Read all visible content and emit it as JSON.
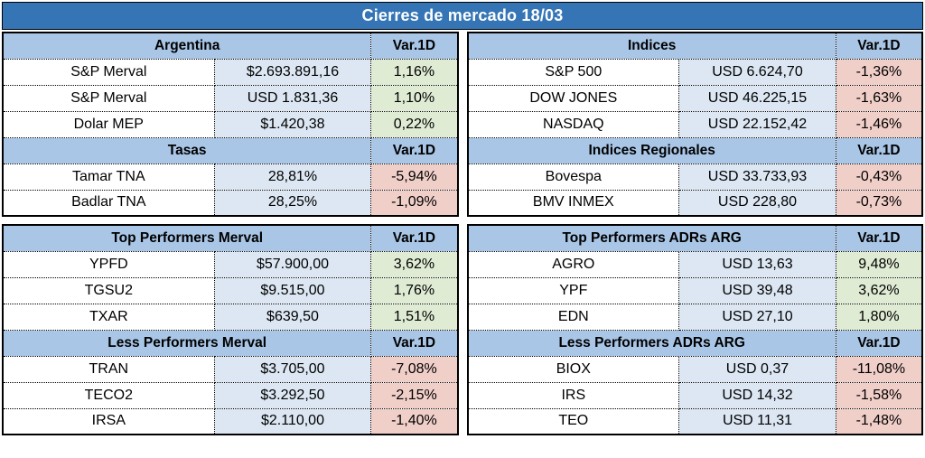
{
  "title": "Cierres de mercado 18/03",
  "colors": {
    "title_bg": "#3575B5",
    "title_text": "#FFFFFF",
    "header_bg": "#A9C6E6",
    "value_bg": "#DCE7F3",
    "positive_bg": "#DFEBD3",
    "negative_bg": "#F1CFC9",
    "border": "#000000"
  },
  "chart_data": {
    "type": "table",
    "title": "Cierres de mercado 18/03",
    "var_column": "Var.1D",
    "tables": [
      {
        "id": "argentina-tasas",
        "sections": [
          {
            "header": "Argentina",
            "rows": [
              {
                "name": "S&P Merval",
                "value": "$2.693.891,16",
                "var1d": "1,16%",
                "direction": "up"
              },
              {
                "name": "S&P Merval",
                "value": "USD 1.831,36",
                "var1d": "1,10%",
                "direction": "up"
              },
              {
                "name": "Dolar MEP",
                "value": "$1.420,38",
                "var1d": "0,22%",
                "direction": "up"
              }
            ]
          },
          {
            "header": "Tasas",
            "rows": [
              {
                "name": "Tamar TNA",
                "value": "28,81%",
                "var1d": "-5,94%",
                "direction": "down"
              },
              {
                "name": "Badlar TNA",
                "value": "28,25%",
                "var1d": "-1,09%",
                "direction": "down"
              }
            ]
          }
        ]
      },
      {
        "id": "indices",
        "sections": [
          {
            "header": "Indices",
            "rows": [
              {
                "name": "S&P 500",
                "value": "USD 6.624,70",
                "var1d": "-1,36%",
                "direction": "down"
              },
              {
                "name": "DOW JONES",
                "value": "USD 46.225,15",
                "var1d": "-1,63%",
                "direction": "down"
              },
              {
                "name": "NASDAQ",
                "value": "USD 22.152,42",
                "var1d": "-1,46%",
                "direction": "down"
              }
            ]
          },
          {
            "header": "Indices Regionales",
            "rows": [
              {
                "name": "Bovespa",
                "value": "USD 33.733,93",
                "var1d": "-0,43%",
                "direction": "down"
              },
              {
                "name": "BMV INMEX",
                "value": "USD 228,80",
                "var1d": "-0,73%",
                "direction": "down"
              }
            ]
          }
        ]
      },
      {
        "id": "merval-performers",
        "sections": [
          {
            "header": "Top Performers Merval",
            "rows": [
              {
                "name": "YPFD",
                "value": "$57.900,00",
                "var1d": "3,62%",
                "direction": "up"
              },
              {
                "name": "TGSU2",
                "value": "$9.515,00",
                "var1d": "1,76%",
                "direction": "up"
              },
              {
                "name": "TXAR",
                "value": "$639,50",
                "var1d": "1,51%",
                "direction": "up"
              }
            ]
          },
          {
            "header": "Less Performers Merval",
            "rows": [
              {
                "name": "TRAN",
                "value": "$3.705,00",
                "var1d": "-7,08%",
                "direction": "down"
              },
              {
                "name": "TECO2",
                "value": "$3.292,50",
                "var1d": "-2,15%",
                "direction": "down"
              },
              {
                "name": "IRSA",
                "value": "$2.110,00",
                "var1d": "-1,40%",
                "direction": "down"
              }
            ]
          }
        ]
      },
      {
        "id": "adr-performers",
        "sections": [
          {
            "header": "Top Performers ADRs ARG",
            "rows": [
              {
                "name": "AGRO",
                "value": "USD 13,63",
                "var1d": "9,48%",
                "direction": "up"
              },
              {
                "name": "YPF",
                "value": "USD 39,48",
                "var1d": "3,62%",
                "direction": "up"
              },
              {
                "name": "EDN",
                "value": "USD 27,10",
                "var1d": "1,80%",
                "direction": "up"
              }
            ]
          },
          {
            "header": "Less Performers ADRs ARG",
            "rows": [
              {
                "name": "BIOX",
                "value": "USD 0,37",
                "var1d": "-11,08%",
                "direction": "down"
              },
              {
                "name": "IRS",
                "value": "USD 14,32",
                "var1d": "-1,58%",
                "direction": "down"
              },
              {
                "name": "TEO",
                "value": "USD 11,31",
                "var1d": "-1,48%",
                "direction": "down"
              }
            ]
          }
        ]
      }
    ]
  }
}
